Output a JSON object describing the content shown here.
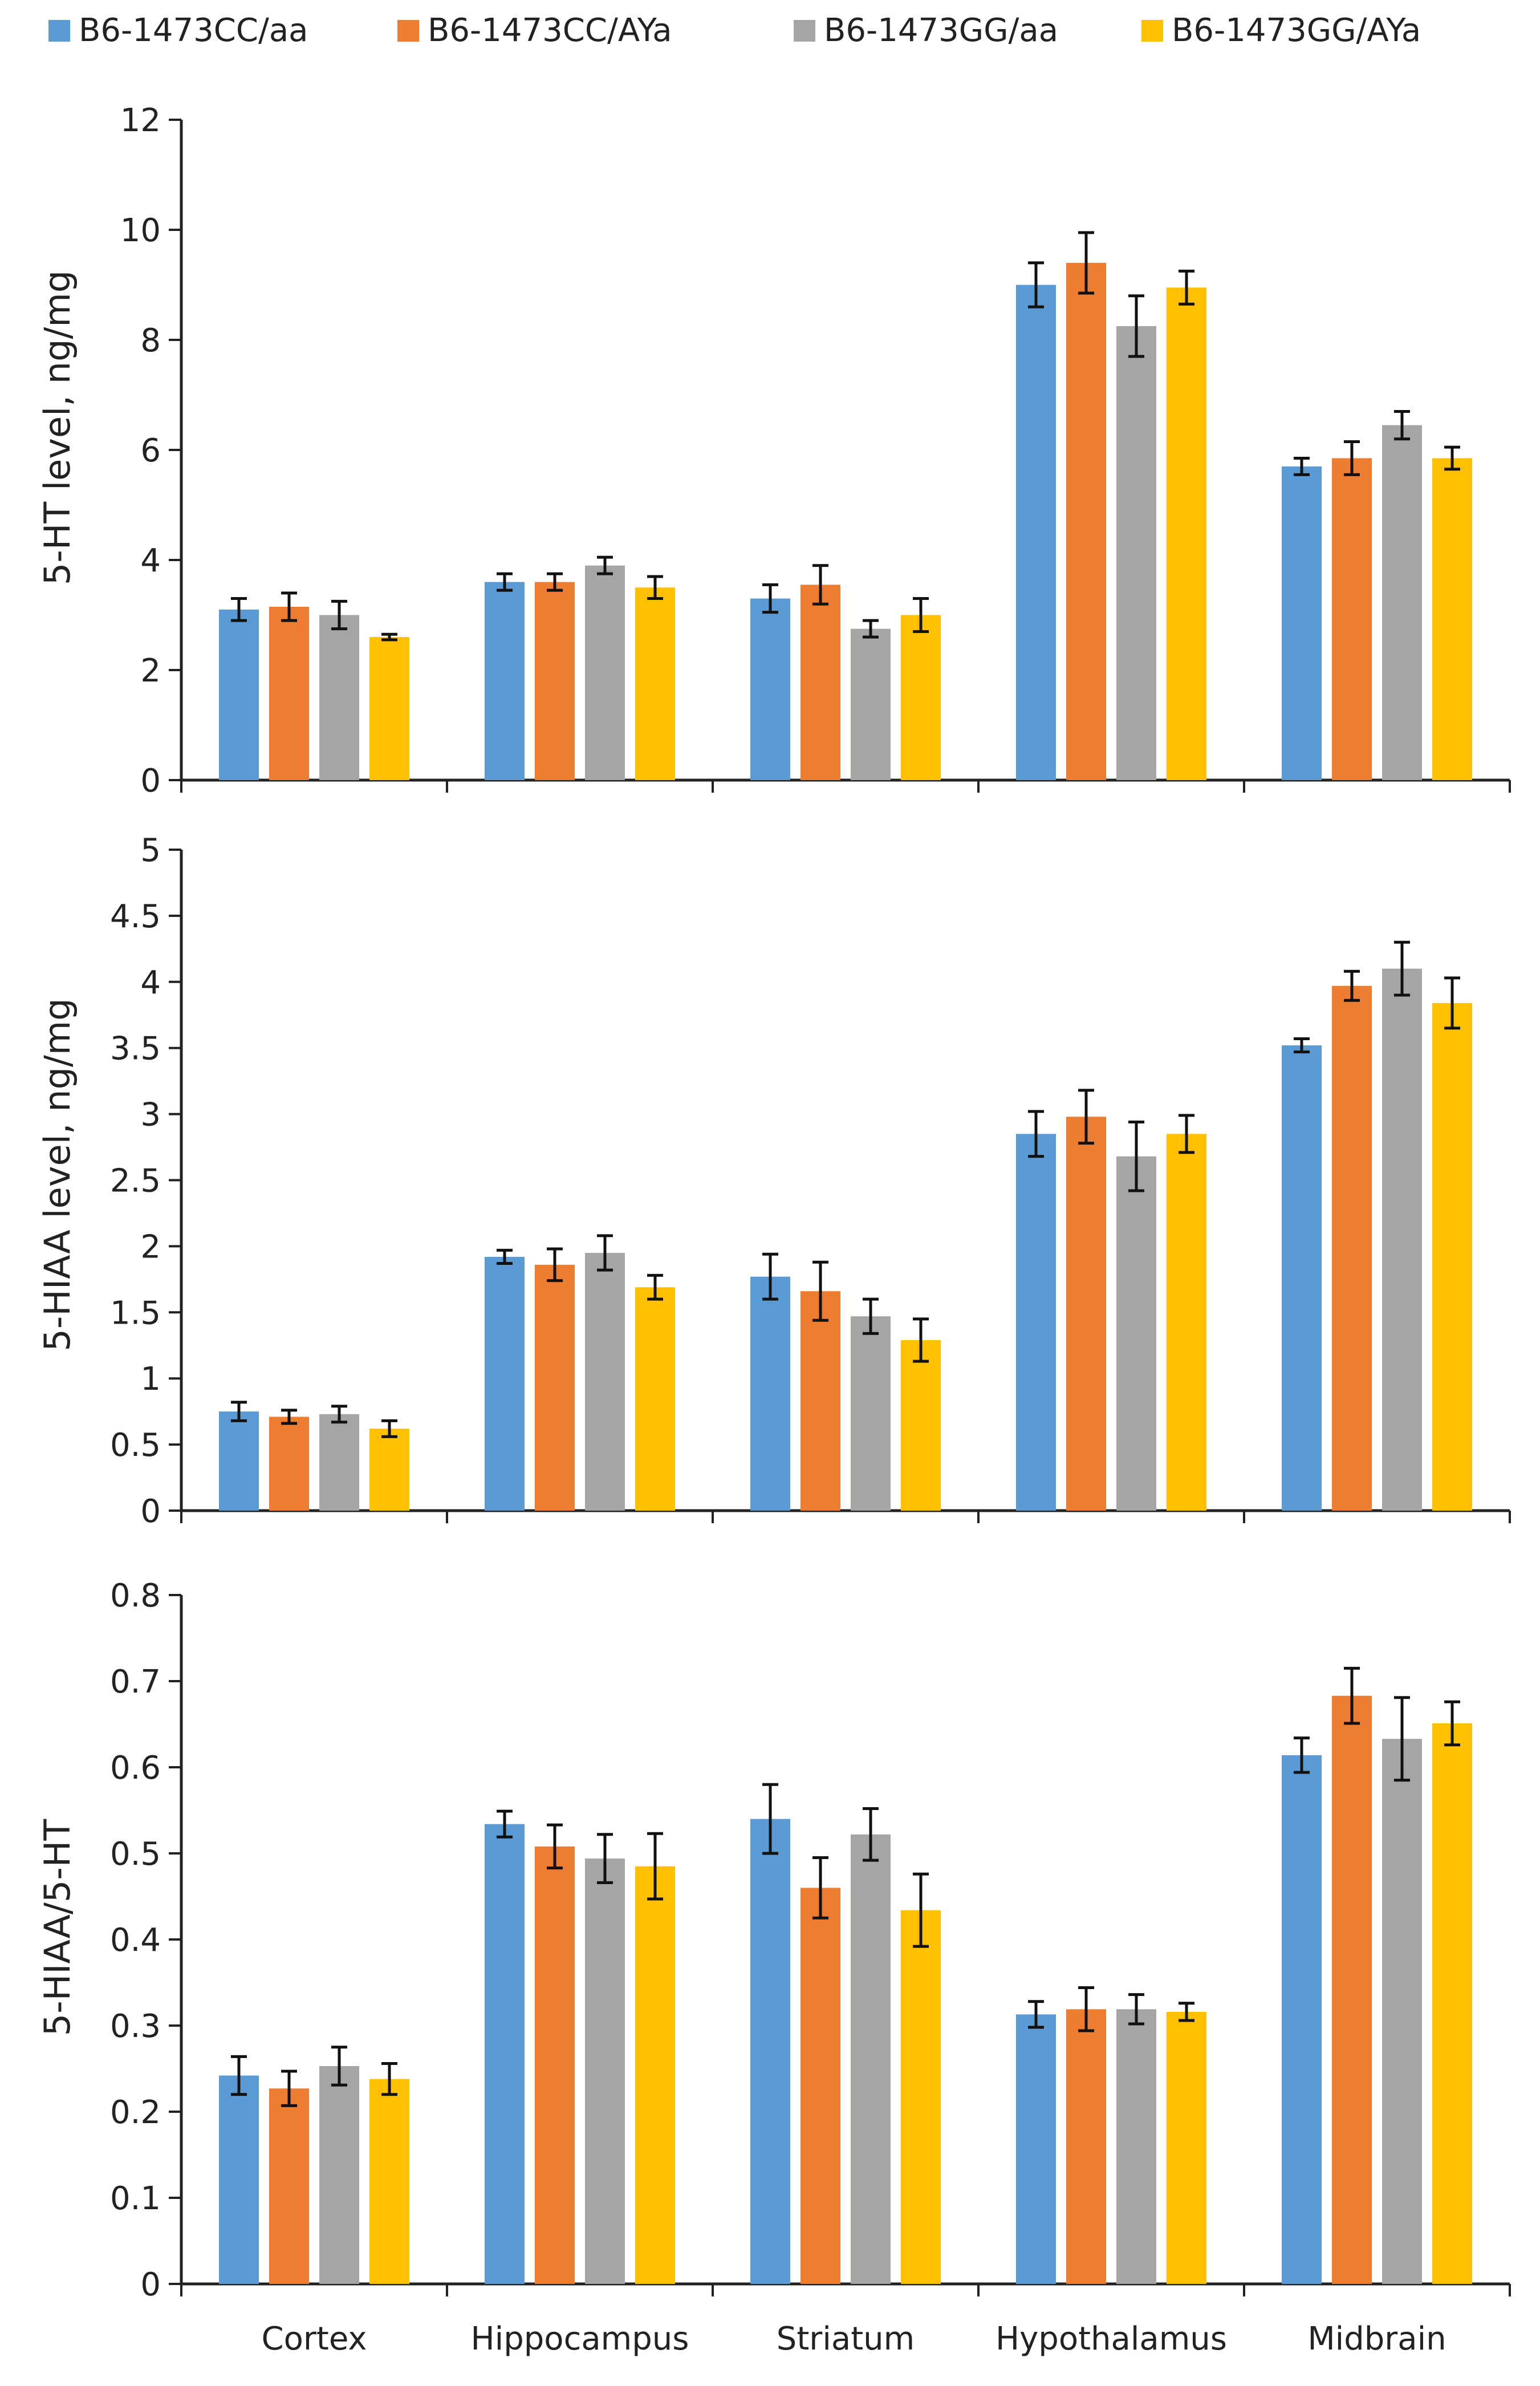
{
  "legend": [
    {
      "label": "B6-1473CC/aa",
      "color": "#5B9BD5"
    },
    {
      "label": "B6-1473CC/AYa",
      "color": "#ED7D31"
    },
    {
      "label": "B6-1473GG/aa",
      "color": "#A5A5A5"
    },
    {
      "label": "B6-1473GG/AYa",
      "color": "#FFC000"
    }
  ],
  "chart_data": [
    {
      "type": "bar",
      "ylabel": "5-HT level, ng/mg",
      "ylim": [
        0,
        12
      ],
      "yticks": [
        "0",
        "2",
        "4",
        "6",
        "8",
        "10",
        "12"
      ],
      "categories": [
        "Cortex",
        "Hippocampus",
        "Striatum",
        "Hypothalamus",
        "Midbrain"
      ],
      "series": [
        {
          "name": "B6-1473CC/aa",
          "values": [
            3.1,
            3.6,
            3.3,
            9.0,
            5.7
          ],
          "errors": [
            0.2,
            0.15,
            0.25,
            0.4,
            0.15
          ]
        },
        {
          "name": "B6-1473CC/AYa",
          "values": [
            3.15,
            3.6,
            3.55,
            9.4,
            5.85
          ],
          "errors": [
            0.25,
            0.15,
            0.35,
            0.55,
            0.3
          ]
        },
        {
          "name": "B6-1473GG/aa",
          "values": [
            3.0,
            3.9,
            2.75,
            8.25,
            6.45
          ],
          "errors": [
            0.25,
            0.15,
            0.15,
            0.55,
            0.25
          ]
        },
        {
          "name": "B6-1473GG/AYa",
          "values": [
            2.6,
            3.5,
            3.0,
            8.95,
            5.85
          ],
          "errors": [
            0.05,
            0.2,
            0.3,
            0.3,
            0.2
          ]
        }
      ]
    },
    {
      "type": "bar",
      "ylabel": "5-HIAA level, ng/mg",
      "ylim": [
        0,
        5
      ],
      "yticks": [
        "0",
        "0.5",
        "1",
        "1.5",
        "2",
        "2.5",
        "3",
        "3.5",
        "4",
        "4.5",
        "5"
      ],
      "categories": [
        "Cortex",
        "Hippocampus",
        "Striatum",
        "Hypothalamus",
        "Midbrain"
      ],
      "series": [
        {
          "name": "B6-1473CC/aa",
          "values": [
            0.75,
            1.92,
            1.77,
            2.85,
            3.52
          ],
          "errors": [
            0.07,
            0.05,
            0.17,
            0.17,
            0.05
          ]
        },
        {
          "name": "B6-1473CC/AYa",
          "values": [
            0.71,
            1.86,
            1.66,
            2.98,
            3.97
          ],
          "errors": [
            0.05,
            0.12,
            0.22,
            0.2,
            0.11
          ]
        },
        {
          "name": "B6-1473GG/aa",
          "values": [
            0.73,
            1.95,
            1.47,
            2.68,
            4.1
          ],
          "errors": [
            0.06,
            0.13,
            0.13,
            0.26,
            0.2
          ]
        },
        {
          "name": "B6-1473GG/AYa",
          "values": [
            0.62,
            1.69,
            1.29,
            2.85,
            3.84
          ],
          "errors": [
            0.06,
            0.09,
            0.16,
            0.14,
            0.19
          ]
        }
      ]
    },
    {
      "type": "bar",
      "ylabel": "5-HIAA/5-HT",
      "ylim": [
        0,
        0.8
      ],
      "yticks": [
        "0",
        "0.1",
        "0.2",
        "0.3",
        "0.4",
        "0.5",
        "0.6",
        "0.7",
        "0.8"
      ],
      "categories": [
        "Cortex",
        "Hippocampus",
        "Striatum",
        "Hypothalamus",
        "Midbrain"
      ],
      "series": [
        {
          "name": "B6-1473CC/aa",
          "values": [
            0.242,
            0.534,
            0.54,
            0.313,
            0.614
          ],
          "errors": [
            0.022,
            0.015,
            0.04,
            0.015,
            0.02
          ]
        },
        {
          "name": "B6-1473CC/AYa",
          "values": [
            0.227,
            0.508,
            0.46,
            0.319,
            0.683
          ],
          "errors": [
            0.02,
            0.025,
            0.035,
            0.025,
            0.032
          ]
        },
        {
          "name": "B6-1473GG/aa",
          "values": [
            0.253,
            0.494,
            0.522,
            0.319,
            0.633
          ],
          "errors": [
            0.022,
            0.028,
            0.03,
            0.017,
            0.048
          ]
        },
        {
          "name": "B6-1473GG/AYa",
          "values": [
            0.238,
            0.485,
            0.434,
            0.316,
            0.651
          ],
          "errors": [
            0.018,
            0.038,
            0.042,
            0.01,
            0.025
          ]
        }
      ]
    }
  ]
}
